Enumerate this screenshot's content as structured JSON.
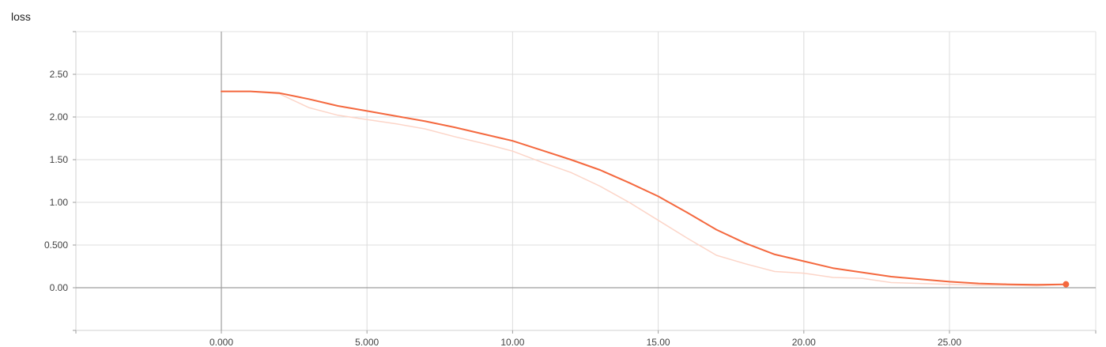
{
  "title": "loss",
  "chart_data": {
    "type": "line",
    "title": "loss",
    "xlabel": "",
    "ylabel": "",
    "xlim": [
      -5,
      30
    ],
    "ylim": [
      -0.5,
      2.95
    ],
    "x_ticks": [
      0,
      5,
      10,
      15,
      20,
      25
    ],
    "x_tick_labels": [
      "0.000",
      "5.000",
      "10.00",
      "15.00",
      "20.00",
      "25.00"
    ],
    "y_ticks": [
      0,
      0.5,
      1,
      1.5,
      2,
      2.5
    ],
    "y_tick_labels": [
      "0.00",
      "0.500",
      "1.00",
      "1.50",
      "2.00",
      "2.50"
    ],
    "grid": true,
    "series": [
      {
        "role": "smoothed",
        "color": "#f4683e",
        "x": [
          0,
          1,
          2,
          3,
          4,
          5,
          6,
          7,
          8,
          9,
          10,
          11,
          12,
          13,
          14,
          15,
          16,
          17,
          18,
          19,
          20,
          21,
          22,
          23,
          24,
          25,
          26,
          27,
          28,
          29
        ],
        "y": [
          2.3,
          2.3,
          2.28,
          2.21,
          2.13,
          2.07,
          2.01,
          1.95,
          1.88,
          1.8,
          1.72,
          1.61,
          1.5,
          1.38,
          1.23,
          1.07,
          0.88,
          0.68,
          0.52,
          0.39,
          0.31,
          0.23,
          0.18,
          0.13,
          0.1,
          0.07,
          0.05,
          0.04,
          0.035,
          0.04
        ]
      },
      {
        "role": "raw",
        "color": "#fcd5c8",
        "x": [
          0,
          1,
          2,
          3,
          4,
          5,
          6,
          7,
          8,
          9,
          10,
          11,
          12,
          13,
          14,
          15,
          16,
          17,
          18,
          19,
          20,
          21,
          22,
          23,
          24,
          25,
          26,
          27,
          28,
          29
        ],
        "y": [
          2.3,
          2.3,
          2.27,
          2.11,
          2.02,
          1.97,
          1.92,
          1.86,
          1.77,
          1.69,
          1.6,
          1.47,
          1.35,
          1.19,
          1.0,
          0.79,
          0.58,
          0.38,
          0.28,
          0.19,
          0.17,
          0.12,
          0.11,
          0.06,
          0.05,
          0.04,
          0.03,
          0.03,
          0.02,
          0.04
        ]
      }
    ]
  }
}
